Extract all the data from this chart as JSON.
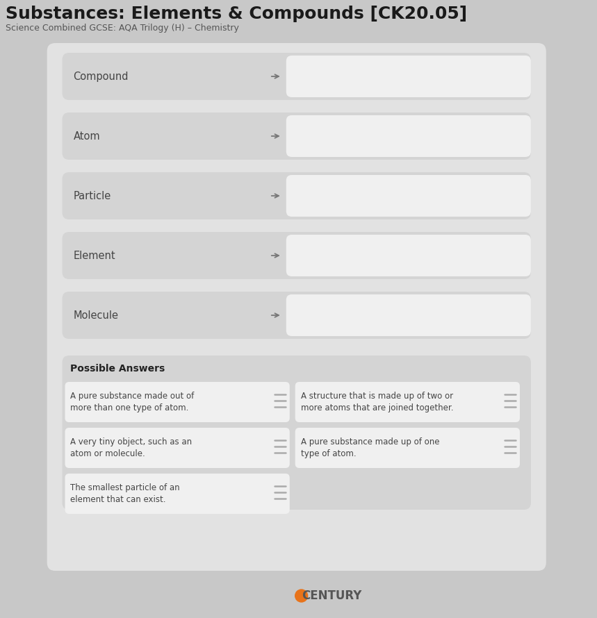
{
  "title": "Substances: Elements & Compounds [CK20.05]",
  "subtitle": "Science Combined GCSE: AQA Trilogy (H) – Chemistry",
  "bg_color": "#c8c8c8",
  "panel_bg": "#e2e2e2",
  "card_bg_dark": "#d4d4d4",
  "card_bg_light": "#dedede",
  "white_box_bg": "#f0f0f0",
  "answer_card_bg": "#f0f0f0",
  "term_rows": [
    "Compound",
    "Atom",
    "Particle",
    "Element",
    "Molecule"
  ],
  "possible_answers_title": "Possible Answers",
  "answers": [
    [
      "A pure substance made out of\nmore than one type of atom.",
      "A structure that is made up of two or\nmore atoms that are joined together."
    ],
    [
      "A very tiny object, such as an\natom or molecule.",
      "A pure substance made up of one\ntype of atom."
    ],
    [
      "The smallest particle of an\nelement that can exist.",
      ""
    ]
  ],
  "century_text": "CENTURY",
  "title_fontsize": 18,
  "subtitle_fontsize": 9,
  "term_fontsize": 10.5,
  "answer_fontsize": 8.5,
  "possible_answers_fontsize": 10
}
